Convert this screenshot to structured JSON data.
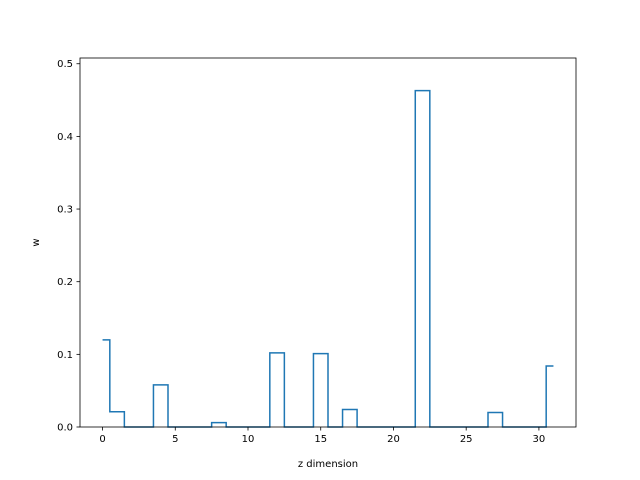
{
  "chart_data": {
    "type": "step",
    "title": "",
    "xlabel": "z dimension",
    "ylabel": "w",
    "xlim": [
      -1.55,
      32.55
    ],
    "ylim": [
      0,
      0.5079
    ],
    "xticks": [
      0,
      5,
      10,
      15,
      20,
      25,
      30
    ],
    "yticks": [
      0.0,
      0.1,
      0.2,
      0.3,
      0.4,
      0.5
    ],
    "ytick_labels": [
      "0.0",
      "0.1",
      "0.2",
      "0.3",
      "0.4",
      "0.5"
    ],
    "grid": false,
    "line_color": "#1f77b4",
    "step_where": "mid",
    "x": [
      0,
      1,
      2,
      3,
      4,
      5,
      6,
      7,
      8,
      9,
      10,
      11,
      12,
      13,
      14,
      15,
      16,
      17,
      18,
      19,
      20,
      21,
      22,
      23,
      24,
      25,
      26,
      27,
      28,
      29,
      30,
      31
    ],
    "values": [
      0.12,
      0.021,
      0,
      0,
      0.058,
      0,
      0,
      0,
      0.006,
      0,
      0,
      0,
      0.102,
      0,
      0,
      0.101,
      0,
      0.024,
      0,
      0,
      0,
      0,
      0.463,
      0,
      0,
      0,
      0,
      0.02,
      0,
      0,
      0,
      0.084
    ]
  }
}
